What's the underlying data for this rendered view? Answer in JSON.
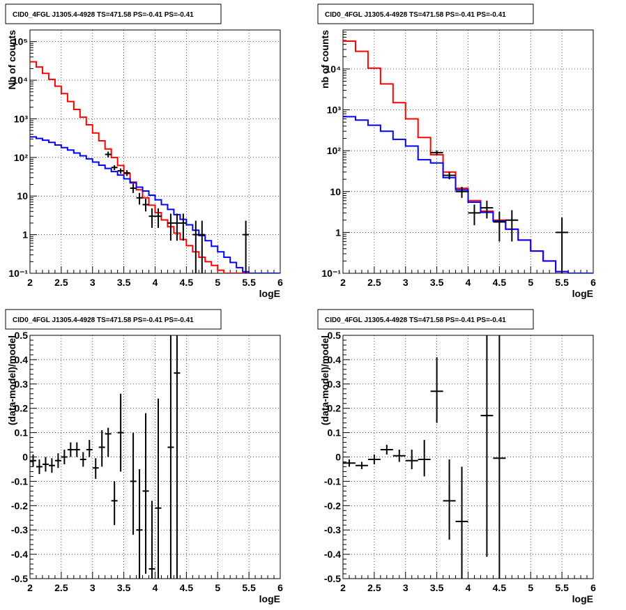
{
  "chart_data": [
    {
      "id": "counts_sum",
      "type": "line",
      "title": "CID0_4FGL J1305.4-4928 TS=471.58 PS=-0.41 PS=-0.41",
      "xlabel": "logE",
      "ylabel": "Nb of counts",
      "xlim": [
        2,
        6
      ],
      "ylim": [
        0.1,
        200000
      ],
      "yscale": "log",
      "grid": true,
      "xticks": [
        "2",
        "2.5",
        "3",
        "3.5",
        "4",
        "4.5",
        "5",
        "5.5",
        "6"
      ],
      "yticks": [
        {
          "v": 0.1,
          "label": "10⁻¹"
        },
        {
          "v": 1,
          "label": "1"
        },
        {
          "v": 10,
          "label": "10"
        },
        {
          "v": 100,
          "label": "10²"
        },
        {
          "v": 1000,
          "label": "10³"
        },
        {
          "v": 10000,
          "label": "10⁴"
        },
        {
          "v": 100000,
          "label": "10⁵"
        }
      ],
      "bin_edges": [
        2,
        2.1,
        2.2,
        2.3,
        2.4,
        2.5,
        2.6,
        2.7,
        2.8,
        2.9,
        3,
        3.1,
        3.2,
        3.3,
        3.4,
        3.5,
        3.6,
        3.7,
        3.8,
        3.9,
        4,
        4.1,
        4.2,
        4.3,
        4.4,
        4.5,
        4.6,
        4.7,
        4.8,
        4.9,
        5,
        5.1,
        5.2,
        5.3,
        5.4,
        5.5,
        5.6,
        5.7,
        5.8,
        5.9,
        6
      ],
      "series": [
        {
          "color": "#ff0000",
          "values": [
            30000,
            22000,
            15000,
            10500,
            7000,
            4500,
            2800,
            1750,
            1100,
            700,
            430,
            270,
            165,
            100,
            62,
            38,
            23,
            14.5,
            9,
            5.8,
            3.7,
            2.4,
            1.6,
            1.1,
            0.75,
            0.52,
            0.36,
            0.26,
            0.2,
            0.16,
            0.12,
            0.1,
            0.1,
            0.1,
            0.1,
            0.1,
            0.1,
            0.1,
            0.1,
            0.1
          ]
        },
        {
          "color": "#0000ff",
          "values": [
            340,
            310,
            280,
            245,
            210,
            180,
            155,
            130,
            110,
            92,
            76,
            63,
            52,
            43,
            35,
            28,
            22,
            17,
            13.5,
            10.5,
            8,
            6,
            4.5,
            3.3,
            2.5,
            1.8,
            1.3,
            0.95,
            0.7,
            0.5,
            0.36,
            0.26,
            0.19,
            0.14,
            0.11,
            0.1,
            0.1,
            0.1,
            0.1,
            0.1
          ]
        }
      ],
      "points": [
        {
          "x": 3.25,
          "y": 120,
          "xerr": 0.05,
          "ylo": 100,
          "yhi": 142
        },
        {
          "x": 3.35,
          "y": 55,
          "xerr": 0.05,
          "ylo": 47,
          "yhi": 63
        },
        {
          "x": 3.45,
          "y": 45,
          "xerr": 0.05,
          "ylo": 38,
          "yhi": 52
        },
        {
          "x": 3.55,
          "y": 40,
          "xerr": 0.05,
          "ylo": 33,
          "yhi": 47
        },
        {
          "x": 3.65,
          "y": 16,
          "xerr": 0.05,
          "ylo": 12,
          "yhi": 21
        },
        {
          "x": 3.75,
          "y": 9,
          "xerr": 0.05,
          "ylo": 6,
          "yhi": 12
        },
        {
          "x": 3.85,
          "y": 6,
          "xerr": 0.05,
          "ylo": 4,
          "yhi": 8.5
        },
        {
          "x": 3.95,
          "y": 3,
          "xerr": 0.05,
          "ylo": 1.5,
          "yhi": 4.8
        },
        {
          "x": 4.05,
          "y": 3,
          "xerr": 0.05,
          "ylo": 1.5,
          "yhi": 4.8
        },
        {
          "x": 4.25,
          "y": 2,
          "xerr": 0.05,
          "ylo": 0.7,
          "yhi": 3.5
        },
        {
          "x": 4.35,
          "y": 2,
          "xerr": 0.05,
          "ylo": 0.7,
          "yhi": 3.5
        },
        {
          "x": 4.45,
          "y": 2,
          "xerr": 0.05,
          "ylo": 0.7,
          "yhi": 3.5
        },
        {
          "x": 4.65,
          "y": 1,
          "xerr": 0.05,
          "ylo": 0.1,
          "yhi": 2.3
        },
        {
          "x": 4.75,
          "y": 1,
          "xerr": 0.05,
          "ylo": 0.1,
          "yhi": 2.3
        },
        {
          "x": 5.45,
          "y": 1,
          "xerr": 0.05,
          "ylo": 0.1,
          "yhi": 2.3
        }
      ]
    },
    {
      "id": "counts_sum_rebin",
      "type": "line",
      "title": "CID0_4FGL J1305.4-4928 TS=471.58 PS=-0.41 PS=-0.41",
      "xlabel": "logE",
      "ylabel": "nb of counts",
      "xlim": [
        2,
        6
      ],
      "ylim": [
        0.1,
        90000
      ],
      "yscale": "log",
      "grid": true,
      "xticks": [
        "2",
        "2.5",
        "3",
        "3.5",
        "4",
        "4.5",
        "5",
        "5.5",
        "6"
      ],
      "yticks": [
        {
          "v": 0.1,
          "label": "10⁻¹"
        },
        {
          "v": 1,
          "label": "1"
        },
        {
          "v": 10,
          "label": "10"
        },
        {
          "v": 100,
          "label": "10²"
        },
        {
          "v": 1000,
          "label": "10³"
        },
        {
          "v": 10000,
          "label": "10⁴"
        }
      ],
      "bin_edges": [
        2,
        2.2,
        2.4,
        2.6,
        2.8,
        3,
        3.2,
        3.4,
        3.6,
        3.8,
        4,
        4.2,
        4.4,
        4.6,
        4.8,
        5,
        5.2,
        5.4,
        5.6,
        5.8,
        6
      ],
      "series": [
        {
          "color": "#ff0000",
          "values": [
            48000,
            27000,
            10500,
            4300,
            1500,
            600,
            210,
            80,
            30,
            12,
            6,
            3.3,
            2,
            1.2,
            0.65,
            0.35,
            0.2,
            0.11,
            0.1,
            0.1
          ]
        },
        {
          "color": "#0000ff",
          "values": [
            680,
            560,
            420,
            300,
            190,
            130,
            60,
            50,
            22,
            11,
            5.5,
            3.1,
            1.9,
            1.2,
            0.65,
            0.35,
            0.2,
            0.11,
            0.1,
            0.1
          ]
        }
      ],
      "points": [
        {
          "x": 3.5,
          "y": 90,
          "xerr": 0.1,
          "ylo": 80,
          "yhi": 100
        },
        {
          "x": 3.7,
          "y": 25,
          "xerr": 0.1,
          "ylo": 20,
          "yhi": 30
        },
        {
          "x": 3.9,
          "y": 10,
          "xerr": 0.1,
          "ylo": 7,
          "yhi": 13
        },
        {
          "x": 4.1,
          "y": 3,
          "xerr": 0.1,
          "ylo": 1.5,
          "yhi": 4.8
        },
        {
          "x": 4.3,
          "y": 4,
          "xerr": 0.1,
          "ylo": 2.2,
          "yhi": 6
        },
        {
          "x": 4.5,
          "y": 1.8,
          "xerr": 0.1,
          "ylo": 0.6,
          "yhi": 3.2
        },
        {
          "x": 4.7,
          "y": 2,
          "xerr": 0.1,
          "ylo": 0.6,
          "yhi": 3.5
        },
        {
          "x": 5.5,
          "y": 1,
          "xerr": 0.1,
          "ylo": 0.1,
          "yhi": 2.3
        }
      ]
    },
    {
      "id": "residuals",
      "type": "scatter",
      "title": "CID0_4FGL J1305.4-4928 TS=471.58 PS=-0.41 PS=-0.41",
      "xlabel": "logE",
      "ylabel": "(data-model)/model",
      "xlim": [
        2,
        6
      ],
      "ylim": [
        -0.5,
        0.5
      ],
      "yscale": "linear",
      "grid": true,
      "xticks": [
        "2",
        "2.5",
        "3",
        "3.5",
        "4",
        "4.5",
        "5",
        "5.5",
        "6"
      ],
      "yticks": [
        {
          "v": -0.5,
          "label": "-0.5"
        },
        {
          "v": -0.4,
          "label": "-0.4"
        },
        {
          "v": -0.3,
          "label": "-0.3"
        },
        {
          "v": -0.2,
          "label": "-0.2"
        },
        {
          "v": -0.1,
          "label": "-0.1"
        },
        {
          "v": 0,
          "label": "0"
        },
        {
          "v": 0.1,
          "label": "0.1"
        },
        {
          "v": 0.2,
          "label": "0.2"
        },
        {
          "v": 0.3,
          "label": "0.3"
        },
        {
          "v": 0.4,
          "label": "0.4"
        },
        {
          "v": 0.5,
          "label": "0.5"
        }
      ],
      "points": [
        {
          "x": 2.05,
          "y": -0.015,
          "xerr": 0.05,
          "ylo": -0.04,
          "yhi": 0.01
        },
        {
          "x": 2.15,
          "y": -0.04,
          "xerr": 0.05,
          "ylo": -0.07,
          "yhi": -0.01
        },
        {
          "x": 2.25,
          "y": -0.03,
          "xerr": 0.05,
          "ylo": -0.06,
          "yhi": 0.0
        },
        {
          "x": 2.35,
          "y": -0.035,
          "xerr": 0.05,
          "ylo": -0.065,
          "yhi": -0.005
        },
        {
          "x": 2.45,
          "y": -0.015,
          "xerr": 0.05,
          "ylo": -0.045,
          "yhi": 0.015
        },
        {
          "x": 2.55,
          "y": 0.0,
          "xerr": 0.05,
          "ylo": -0.03,
          "yhi": 0.03
        },
        {
          "x": 2.65,
          "y": 0.03,
          "xerr": 0.05,
          "ylo": 0.0,
          "yhi": 0.06
        },
        {
          "x": 2.75,
          "y": 0.03,
          "xerr": 0.05,
          "ylo": 0.0,
          "yhi": 0.06
        },
        {
          "x": 2.85,
          "y": -0.01,
          "xerr": 0.05,
          "ylo": -0.04,
          "yhi": 0.02
        },
        {
          "x": 2.95,
          "y": 0.03,
          "xerr": 0.05,
          "ylo": 0.0,
          "yhi": 0.07
        },
        {
          "x": 3.05,
          "y": -0.045,
          "xerr": 0.05,
          "ylo": -0.09,
          "yhi": -0.005
        },
        {
          "x": 3.15,
          "y": 0.04,
          "xerr": 0.05,
          "ylo": -0.04,
          "yhi": 0.11
        },
        {
          "x": 3.25,
          "y": 0.095,
          "xerr": 0.05,
          "ylo": 0.0,
          "yhi": 0.12
        },
        {
          "x": 3.35,
          "y": -0.18,
          "xerr": 0.05,
          "ylo": -0.28,
          "yhi": -0.1
        },
        {
          "x": 3.45,
          "y": 0.1,
          "xerr": 0.05,
          "ylo": -0.06,
          "yhi": 0.26
        },
        {
          "x": 3.65,
          "y": -0.1,
          "xerr": 0.05,
          "ylo": -0.32,
          "yhi": 0.1
        },
        {
          "x": 3.75,
          "y": -0.3,
          "xerr": 0.05,
          "ylo": -0.5,
          "yhi": -0.05
        },
        {
          "x": 3.85,
          "y": -0.14,
          "xerr": 0.05,
          "ylo": -0.48,
          "yhi": 0.18
        },
        {
          "x": 3.95,
          "y": -0.46,
          "xerr": 0.05,
          "ylo": -0.5,
          "yhi": -0.18
        },
        {
          "x": 4.05,
          "y": -0.21,
          "xerr": 0.05,
          "ylo": -0.5,
          "yhi": 0.24
        },
        {
          "x": 4.25,
          "y": 0.04,
          "xerr": 0.05,
          "ylo": -0.5,
          "yhi": 0.5
        },
        {
          "x": 4.35,
          "y": 0.345,
          "xerr": 0.05,
          "ylo": -0.5,
          "yhi": 0.5
        }
      ]
    },
    {
      "id": "residuals_rebin",
      "type": "scatter",
      "title": "CID0_4FGL J1305.4-4928 TS=471.58 PS=-0.41 PS=-0.41",
      "xlabel": "logE",
      "ylabel": "(data-model)/model",
      "xlim": [
        2,
        6
      ],
      "ylim": [
        -0.5,
        0.5
      ],
      "yscale": "linear",
      "grid": true,
      "xticks": [
        "2",
        "2.5",
        "3",
        "3.5",
        "4",
        "4.5",
        "5",
        "5.5",
        "6"
      ],
      "yticks": [
        {
          "v": -0.5,
          "label": "-0.5"
        },
        {
          "v": -0.4,
          "label": "-0.4"
        },
        {
          "v": -0.3,
          "label": "-0.3"
        },
        {
          "v": -0.2,
          "label": "-0.2"
        },
        {
          "v": -0.1,
          "label": "-0.1"
        },
        {
          "v": 0,
          "label": "0"
        },
        {
          "v": 0.1,
          "label": "0.1"
        },
        {
          "v": 0.2,
          "label": "0.2"
        },
        {
          "v": 0.3,
          "label": "0.3"
        },
        {
          "v": 0.4,
          "label": "0.4"
        },
        {
          "v": 0.5,
          "label": "0.5"
        }
      ],
      "points": [
        {
          "x": 2.1,
          "y": -0.025,
          "xerr": 0.1,
          "ylo": -0.04,
          "yhi": -0.01
        },
        {
          "x": 2.3,
          "y": -0.035,
          "xerr": 0.1,
          "ylo": -0.05,
          "yhi": -0.02
        },
        {
          "x": 2.5,
          "y": -0.01,
          "xerr": 0.1,
          "ylo": -0.03,
          "yhi": 0.01
        },
        {
          "x": 2.7,
          "y": 0.03,
          "xerr": 0.1,
          "ylo": 0.01,
          "yhi": 0.05
        },
        {
          "x": 2.9,
          "y": 0.005,
          "xerr": 0.1,
          "ylo": -0.02,
          "yhi": 0.03
        },
        {
          "x": 3.1,
          "y": -0.015,
          "xerr": 0.1,
          "ylo": -0.05,
          "yhi": 0.03
        },
        {
          "x": 3.3,
          "y": -0.01,
          "xerr": 0.1,
          "ylo": -0.08,
          "yhi": 0.07
        },
        {
          "x": 3.5,
          "y": 0.27,
          "xerr": 0.1,
          "ylo": 0.14,
          "yhi": 0.41
        },
        {
          "x": 3.7,
          "y": -0.18,
          "xerr": 0.1,
          "ylo": -0.34,
          "yhi": -0.01
        },
        {
          "x": 3.9,
          "y": -0.265,
          "xerr": 0.1,
          "ylo": -0.5,
          "yhi": -0.04
        },
        {
          "x": 4.3,
          "y": 0.17,
          "xerr": 0.1,
          "ylo": -0.41,
          "yhi": 0.5
        },
        {
          "x": 4.5,
          "y": -0.005,
          "xerr": 0.1,
          "ylo": -0.5,
          "yhi": 0.5
        }
      ]
    }
  ]
}
